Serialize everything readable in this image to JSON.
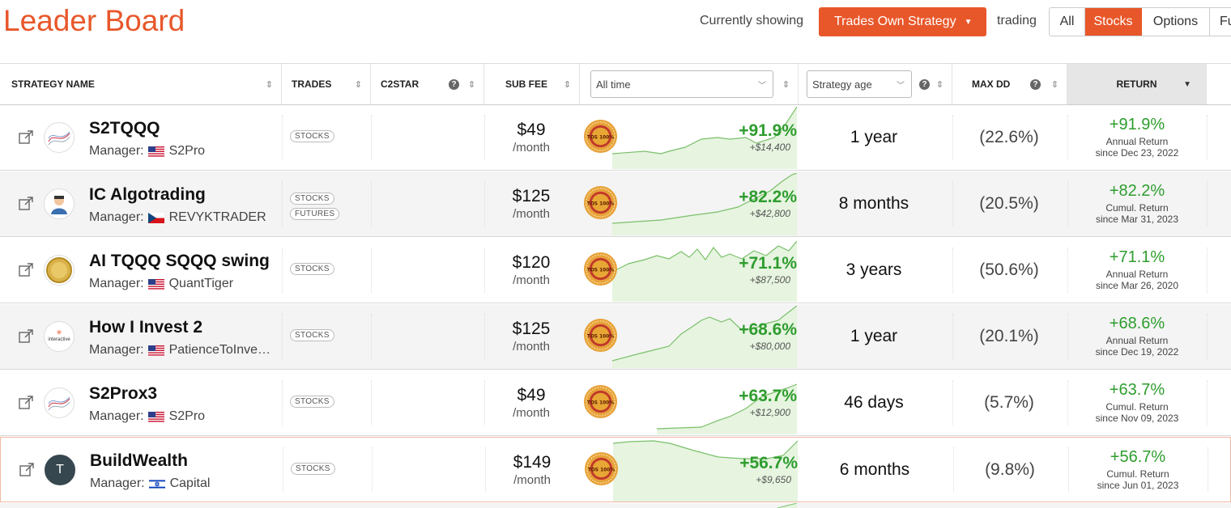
{
  "header": {
    "title": "Leader Board",
    "currently_showing_label": "Currently showing",
    "strategy_dropdown": "Trades Own Strategy",
    "trading_label": "trading",
    "filters": [
      "All",
      "Stocks",
      "Options",
      "Fu"
    ],
    "active_filter": "Stocks"
  },
  "columns": {
    "strategy_name": "STRATEGY NAME",
    "trades": "TRADES",
    "c2star": "C2STAR",
    "sub_fee": "SUB FEE",
    "period_select": "All time",
    "age_select": "Strategy age",
    "max_dd": "MAX DD",
    "return": "RETURN"
  },
  "rows": [
    {
      "name": "S2TQQQ",
      "manager_label": "Manager:",
      "manager": "S2Pro",
      "flag": "us",
      "tags": [
        "STOCKS"
      ],
      "fee": "$49",
      "per": "/month",
      "pct": "+91.9%",
      "dollars": "+$14,400",
      "age": "1 year",
      "maxdd": "(22.6%)",
      "ret_pct": "+91.9%",
      "ret_label": "Annual Return",
      "ret_since": "since Dec 23, 2022",
      "avatar": "wave"
    },
    {
      "name": "IC Algotrading",
      "manager_label": "Manager:",
      "manager": "REVYKTRADER",
      "flag": "cz",
      "tags": [
        "STOCKS",
        "FUTURES"
      ],
      "fee": "$125",
      "per": "/month",
      "pct": "+82.2%",
      "dollars": "+$42,800",
      "age": "8 months",
      "maxdd": "(20.5%)",
      "ret_pct": "+82.2%",
      "ret_label": "Cumul. Return",
      "ret_since": "since Mar 31, 2023",
      "avatar": "person"
    },
    {
      "name": "AI TQQQ SQQQ swing",
      "manager_label": "Manager:",
      "manager": "QuantTiger",
      "flag": "us",
      "tags": [
        "STOCKS"
      ],
      "fee": "$120",
      "per": "/month",
      "pct": "+71.1%",
      "dollars": "+$87,500",
      "age": "3 years",
      "maxdd": "(50.6%)",
      "ret_pct": "+71.1%",
      "ret_label": "Annual Return",
      "ret_since": "since Mar 26, 2020",
      "avatar": "coin"
    },
    {
      "name": "How I Invest 2",
      "manager_label": "Manager:",
      "manager": "PatienceToInve…",
      "flag": "us",
      "tags": [
        "STOCKS"
      ],
      "fee": "$125",
      "per": "/month",
      "pct": "+68.6%",
      "dollars": "+$80,000",
      "age": "1 year",
      "maxdd": "(20.1%)",
      "ret_pct": "+68.6%",
      "ret_label": "Annual Return",
      "ret_since": "since Dec 19, 2022",
      "avatar": "interactive",
      "avatar_text": "interactive"
    },
    {
      "name": "S2Prox3",
      "manager_label": "Manager:",
      "manager": "S2Pro",
      "flag": "us",
      "tags": [
        "STOCKS"
      ],
      "fee": "$49",
      "per": "/month",
      "pct": "+63.7%",
      "dollars": "+$12,900",
      "age": "46 days",
      "maxdd": "(5.7%)",
      "ret_pct": "+63.7%",
      "ret_label": "Cumul. Return",
      "ret_since": "since Nov 09, 2023",
      "avatar": "wave"
    },
    {
      "name": "BuildWealth",
      "manager_label": "Manager:",
      "manager": "Capital",
      "flag": "il",
      "tags": [
        "STOCKS"
      ],
      "fee": "$149",
      "per": "/month",
      "pct": "+56.7%",
      "dollars": "+$9,650",
      "age": "6 months",
      "maxdd": "(9.8%)",
      "ret_pct": "+56.7%",
      "ret_label": "Cumul. Return",
      "ret_since": "since Jun 01, 2023",
      "avatar": "letter",
      "avatar_text": "T"
    }
  ],
  "badge_text": "TOS 100%",
  "colors": {
    "accent": "#e8572a",
    "positive": "#2e9d2e"
  }
}
